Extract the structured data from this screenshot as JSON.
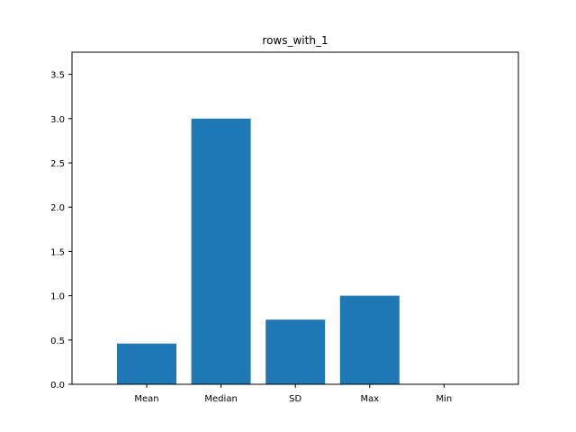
{
  "chart_data": {
    "type": "bar",
    "title": "rows_with_1",
    "xlabel": "",
    "ylabel": "",
    "categories": [
      "Mean",
      "Median",
      "SD",
      "Max",
      "Min"
    ],
    "values": [
      0.46,
      3.0,
      0.73,
      1.0,
      0.0
    ],
    "ylim": [
      0,
      3.75
    ],
    "yticks": [
      "0.0",
      "0.5",
      "1.0",
      "1.5",
      "2.0",
      "2.5",
      "3.0",
      "3.5"
    ],
    "grid": false,
    "bar_color": "#1f77b4"
  }
}
